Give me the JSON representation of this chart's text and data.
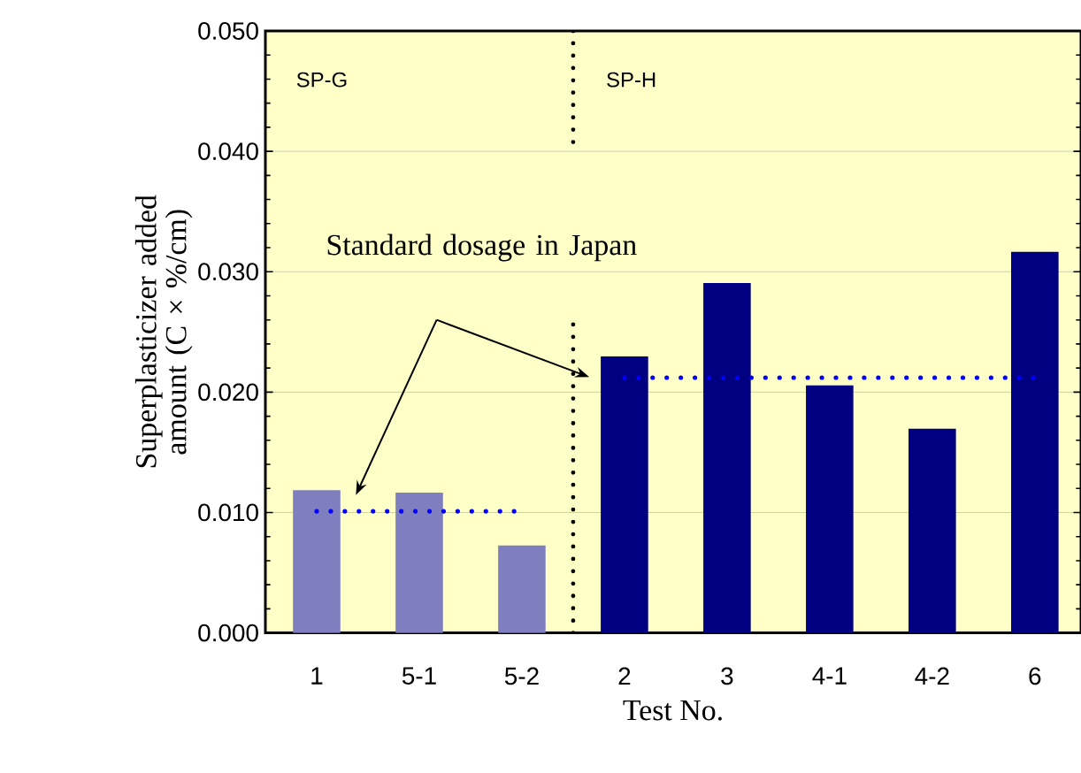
{
  "chart_data": {
    "type": "bar",
    "xlabel": "Test No.",
    "ylabel": "Superplasticizer added amount (C × %/cm)",
    "categories": [
      "1",
      "5-1",
      "5-2",
      "2",
      "3",
      "4-1",
      "4-2",
      "6"
    ],
    "series": [
      {
        "color": "#7f7fbf",
        "values": [
          0.0118,
          0.0116,
          0.0072,
          null,
          null,
          null,
          null,
          null
        ]
      },
      {
        "color": "#000080",
        "values": [
          null,
          null,
          null,
          0.0229,
          0.029,
          0.0205,
          0.0169,
          0.0316
        ]
      },
      {
        "type": "line",
        "color": "#0000ff",
        "line_style": "dotted",
        "marker": "none",
        "values": [
          0.0101,
          0.0101,
          0.0101,
          null,
          null,
          null,
          null,
          null
        ]
      },
      {
        "type": "line",
        "color": "#0000ff",
        "line_style": "dotted",
        "marker": "none",
        "values": [
          null,
          null,
          null,
          0.0212,
          0.0212,
          0.0212,
          0.0212,
          0.0212
        ]
      }
    ],
    "ylim": [
      0,
      0.05
    ],
    "yticks": [
      {
        "value": 0,
        "label": "0.000"
      },
      {
        "value": 0.01,
        "label": "0.010"
      },
      {
        "value": 0.02,
        "label": "0.020"
      },
      {
        "value": 0.03,
        "label": "0.030"
      },
      {
        "value": 0.04,
        "label": "0.040"
      },
      {
        "value": 0.05,
        "label": "0.050"
      }
    ],
    "grid": "y",
    "annotations": [
      "SP-G",
      "SP-H",
      "Standard dosage in Japan"
    ]
  }
}
